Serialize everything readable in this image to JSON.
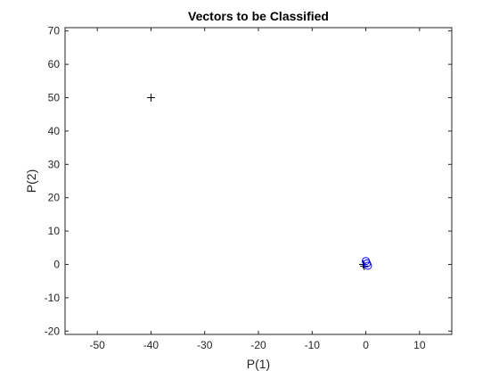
{
  "chart_data": {
    "type": "scatter",
    "title": "Vectors to be Classified",
    "xlabel": "P(1)",
    "ylabel": "P(2)",
    "xlim": [
      -56,
      16
    ],
    "ylim": [
      -21,
      71
    ],
    "xticks": [
      -50,
      -40,
      -30,
      -20,
      -10,
      0,
      10
    ],
    "yticks": [
      -20,
      -10,
      0,
      10,
      20,
      30,
      40,
      50,
      60,
      70
    ],
    "grid": false,
    "series": [
      {
        "marker": "plus",
        "color": "#000000",
        "points": [
          [
            -40,
            50
          ],
          [
            -0.5,
            0
          ],
          [
            -0.3,
            -0.5
          ]
        ]
      },
      {
        "marker": "circle",
        "color": "#0000ff",
        "points": [
          [
            0,
            1
          ],
          [
            0.4,
            -0.4
          ],
          [
            0.2,
            0.3
          ]
        ]
      }
    ]
  }
}
